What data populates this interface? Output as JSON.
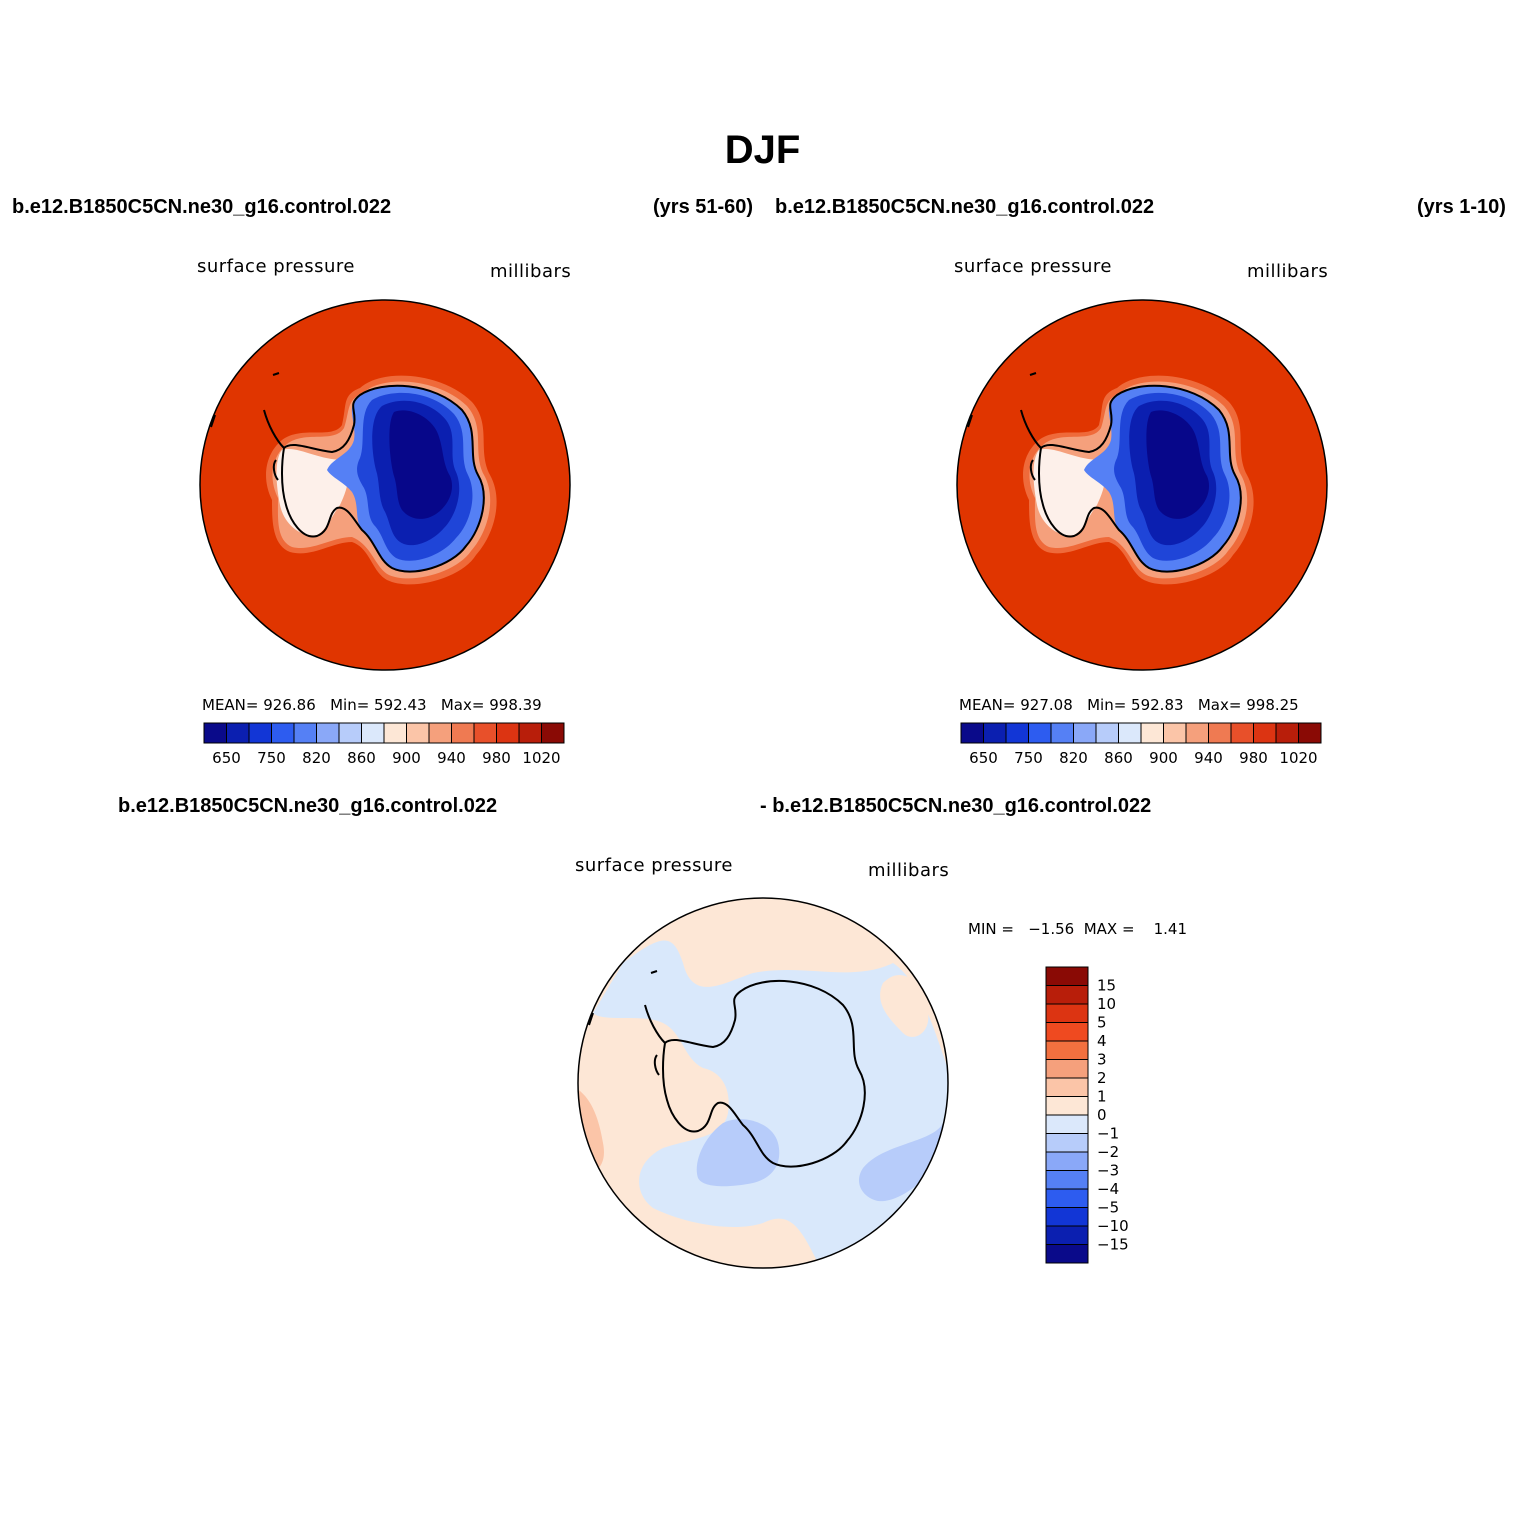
{
  "title": "DJF",
  "panels": [
    {
      "case": "b.e12.B1850C5CN.ne30_g16.control.022",
      "years": "(yrs 51-60)",
      "variable": "surface pressure",
      "units": "millibars",
      "stats": {
        "mean_label": "MEAN=",
        "mean": "926.86",
        "min_label": "Min=",
        "min": "592.43",
        "max_label": "Max=",
        "max": "998.39"
      }
    },
    {
      "case": "b.e12.B1850C5CN.ne30_g16.control.022",
      "years": "(yrs 1-10)",
      "variable": "surface pressure",
      "units": "millibars",
      "stats": {
        "mean_label": "MEAN=",
        "mean": "927.08",
        "min_label": "Min=",
        "min": "592.83",
        "max_label": "Max=",
        "max": "998.25"
      }
    }
  ],
  "diff": {
    "case_left": "b.e12.B1850C5CN.ne30_g16.control.022",
    "case_right": "- b.e12.B1850C5CN.ne30_g16.control.022",
    "variable": "surface pressure",
    "units": "millibars",
    "minmax": "MIN =   −1.56  MAX =    1.41"
  },
  "colorbar_abs": {
    "colors": [
      "#0a0a8a",
      "#0b1fb0",
      "#1236d6",
      "#2d5cf0",
      "#5580f5",
      "#8aa8f8",
      "#b7ccfa",
      "#dbe8fb",
      "#fde7d6",
      "#fbc5a8",
      "#f5a07c",
      "#ef7a52",
      "#e8502a",
      "#dc3412",
      "#b81e0a",
      "#8a0a05"
    ],
    "labels": [
      "650",
      "750",
      "820",
      "860",
      "900",
      "940",
      "980",
      "1020"
    ]
  },
  "colorbar_diff": {
    "colors": [
      "#8a0a05",
      "#b81e0a",
      "#dc3412",
      "#ef4a20",
      "#f2703f",
      "#f5a07c",
      "#fbc5a8",
      "#fde7d6",
      "#dbe8fb",
      "#b7ccfa",
      "#8aa8f8",
      "#5580f5",
      "#2d5cf0",
      "#1236d6",
      "#0b1fb0",
      "#0a0a8a"
    ],
    "labels": [
      "15",
      "10",
      "5",
      "4",
      "3",
      "2",
      "1",
      "0",
      "−1",
      "−2",
      "−3",
      "−4",
      "−5",
      "−10",
      "−15"
    ]
  },
  "map_colors": {
    "ocean": "#e03500",
    "coast_ring": "#ef6a3a",
    "coast_ring2": "#f5a07c",
    "edge_white": "#fdf0ea",
    "ice_light": "#5580f5",
    "ice_mid": "#1f45d8",
    "ice_deep": "#0b1fb0",
    "ice_core": "#07078a",
    "diff_pos": "#fde7d6",
    "diff_pos2": "#fbc5a8",
    "diff_neg": "#d9e8fb",
    "diff_neg2": "#b7ccfa"
  }
}
